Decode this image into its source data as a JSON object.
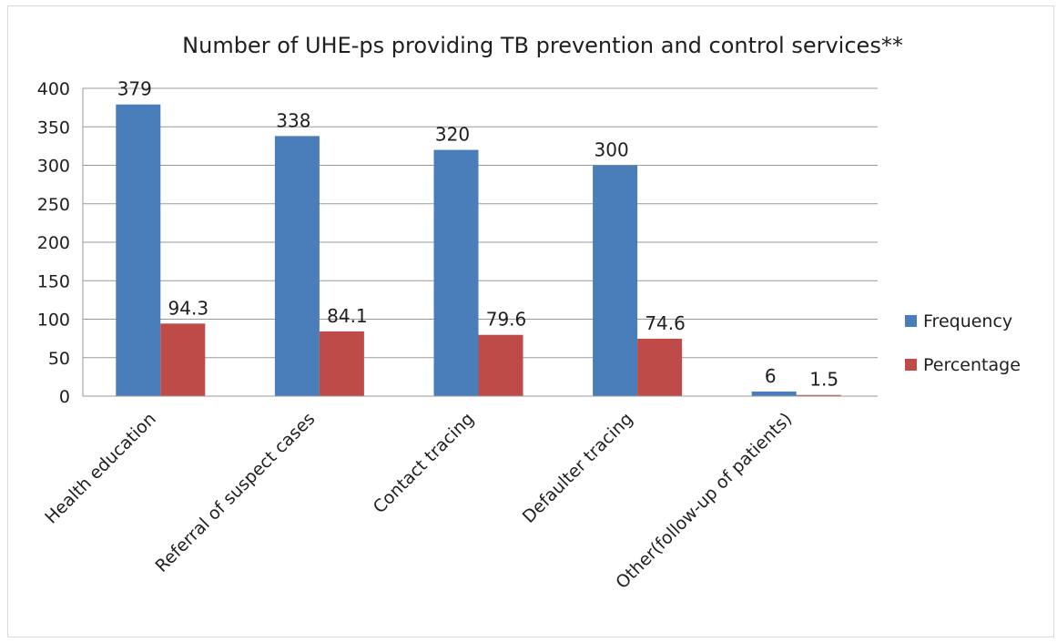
{
  "chart_data": {
    "type": "bar",
    "title": "Number of UHE-ps providing TB prevention and control services**",
    "xlabel": "",
    "ylabel": "",
    "categories": [
      "Health education",
      "Referral of suspect cases",
      "Contact tracing",
      "Defaulter tracing",
      "Other(follow-up of patients)"
    ],
    "series": [
      {
        "name": "Frequency",
        "values": [
          379,
          338,
          320,
          300,
          6
        ],
        "color": "#4a7ebb"
      },
      {
        "name": "Percentage",
        "values": [
          94.3,
          84.1,
          79.6,
          74.6,
          1.5
        ],
        "color": "#be4b48"
      }
    ],
    "ylim": [
      0,
      400
    ],
    "yticks": [
      0,
      50,
      100,
      150,
      200,
      250,
      300,
      350,
      400
    ],
    "grid": true,
    "legend_position": "right"
  }
}
